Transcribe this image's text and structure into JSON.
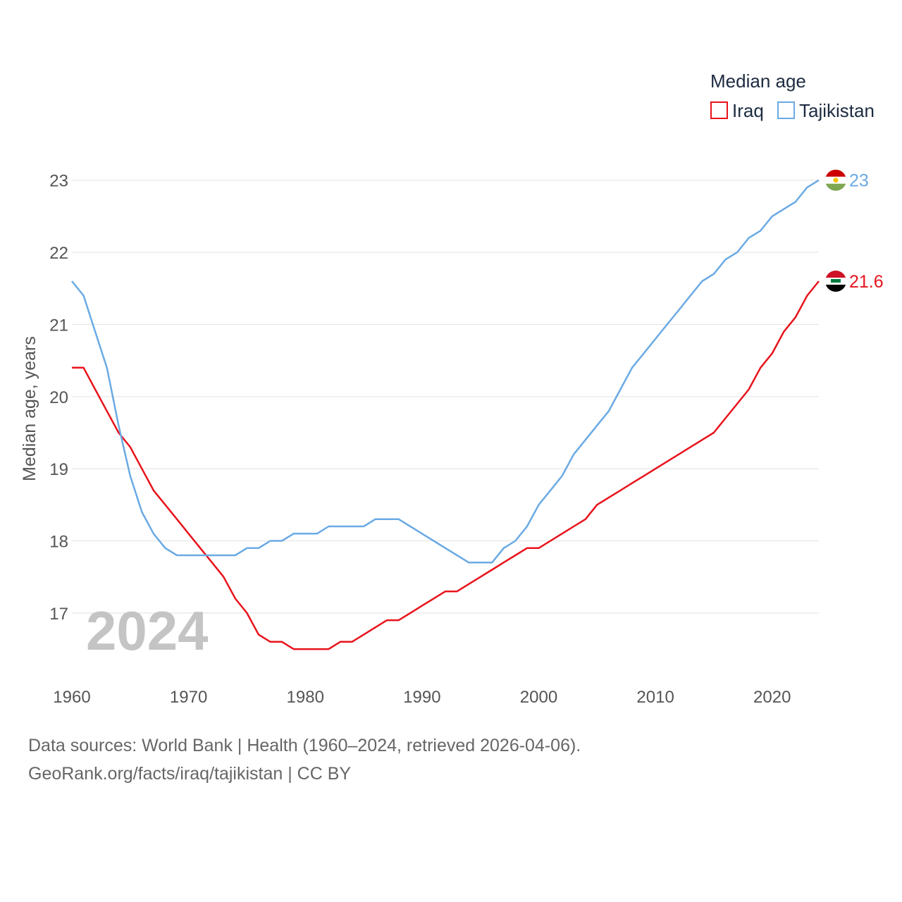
{
  "chart_data": {
    "type": "line",
    "legend_title": "Median age",
    "ylabel": "Median age, years",
    "xlabel": "",
    "xlim": [
      1960,
      2024
    ],
    "ylim": [
      16.1,
      23.3
    ],
    "x_ticks": [
      1960,
      1970,
      1980,
      1990,
      2000,
      2010,
      2020
    ],
    "y_ticks": [
      17,
      18,
      19,
      20,
      21,
      22,
      23
    ],
    "year_label": "2024",
    "x": [
      1960,
      1961,
      1962,
      1963,
      1964,
      1965,
      1966,
      1967,
      1968,
      1969,
      1970,
      1971,
      1972,
      1973,
      1974,
      1975,
      1976,
      1977,
      1978,
      1979,
      1980,
      1981,
      1982,
      1983,
      1984,
      1985,
      1986,
      1987,
      1988,
      1989,
      1990,
      1991,
      1992,
      1993,
      1994,
      1995,
      1996,
      1997,
      1998,
      1999,
      2000,
      2001,
      2002,
      2003,
      2004,
      2005,
      2006,
      2007,
      2008,
      2009,
      2010,
      2011,
      2012,
      2013,
      2014,
      2015,
      2016,
      2017,
      2018,
      2019,
      2020,
      2021,
      2022,
      2023,
      2024
    ],
    "series": [
      {
        "name": "Iraq",
        "color": "#e8131b",
        "end_label": "21.6",
        "values": [
          20.4,
          20.4,
          20.1,
          19.8,
          19.5,
          19.3,
          19.0,
          18.7,
          18.5,
          18.3,
          18.1,
          17.9,
          17.7,
          17.5,
          17.2,
          17.0,
          16.7,
          16.6,
          16.6,
          16.5,
          16.5,
          16.5,
          16.5,
          16.6,
          16.6,
          16.7,
          16.8,
          16.9,
          16.9,
          17.0,
          17.1,
          17.2,
          17.3,
          17.3,
          17.4,
          17.5,
          17.6,
          17.7,
          17.8,
          17.9,
          17.9,
          18.0,
          18.1,
          18.2,
          18.3,
          18.5,
          18.6,
          18.7,
          18.8,
          18.9,
          19.0,
          19.1,
          19.2,
          19.3,
          19.4,
          19.5,
          19.7,
          19.9,
          20.1,
          20.4,
          20.6,
          20.9,
          21.1,
          21.4,
          21.6
        ]
      },
      {
        "name": "Tajikistan",
        "color": "#6aaae4",
        "end_label": "23",
        "values": [
          21.6,
          21.4,
          20.9,
          20.4,
          19.6,
          18.9,
          18.4,
          18.1,
          17.9,
          17.8,
          17.8,
          17.8,
          17.8,
          17.8,
          17.8,
          17.9,
          17.9,
          18.0,
          18.0,
          18.1,
          18.1,
          18.1,
          18.2,
          18.2,
          18.2,
          18.2,
          18.3,
          18.3,
          18.3,
          18.2,
          18.1,
          18.0,
          17.9,
          17.8,
          17.7,
          17.7,
          17.7,
          17.9,
          18.0,
          18.2,
          18.5,
          18.7,
          18.9,
          19.2,
          19.4,
          19.6,
          19.8,
          20.1,
          20.4,
          20.6,
          20.8,
          21.0,
          21.2,
          21.4,
          21.6,
          21.7,
          21.9,
          22.0,
          22.2,
          22.3,
          22.5,
          22.6,
          22.7,
          22.9,
          23.0
        ]
      }
    ]
  },
  "footer": {
    "line1": "Data sources: World Bank | Health (1960–2024, retrieved 2026-04-06).",
    "line2": "GeoRank.org/facts/iraq/tajikistan | CC BY"
  },
  "colors": {
    "grid": "#e6e6e6",
    "text": "#555555"
  }
}
